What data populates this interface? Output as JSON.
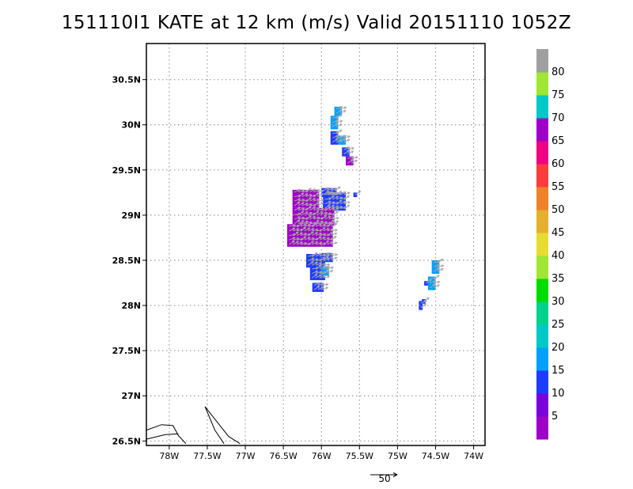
{
  "title": "151110I1 KATE at 12 km (m/s) Valid 20151110 1052Z",
  "map": {
    "lon_ticks": [
      "78W",
      "77.5W",
      "77W",
      "76.5W",
      "76W",
      "75.5W",
      "75W",
      "74.5W",
      "74W"
    ],
    "lat_ticks": [
      "26.5N",
      "27N",
      "27.5N",
      "28N",
      "28.5N",
      "29N",
      "29.5N",
      "30N",
      "30.5N"
    ],
    "lon_range": [
      -78.3,
      -73.85
    ],
    "lat_range": [
      26.45,
      30.9
    ],
    "grid": true,
    "cell_size_deg": 0.05
  },
  "colorbar": {
    "labels": [
      "5",
      "10",
      "15",
      "20",
      "25",
      "30",
      "35",
      "40",
      "45",
      "50",
      "55",
      "60",
      "65",
      "70",
      "75",
      "80"
    ],
    "colors": [
      "#a000c8",
      "#7a00dc",
      "#1e3cff",
      "#00a0ff",
      "#00c8c8",
      "#00d28c",
      "#00dc00",
      "#a0e632",
      "#e6dc32",
      "#e6af2d",
      "#f08228",
      "#fa3c3c",
      "#f00082",
      "#a000c8",
      "#00c8c8",
      "#a0e632",
      "#a0a0a0"
    ]
  },
  "reference_vector": {
    "label": "50"
  },
  "wind_cells": [
    {
      "lon": -75.83,
      "lat": 30.1,
      "w": 2,
      "h": 2,
      "c": "#00a0ff"
    },
    {
      "lon": -75.88,
      "lat": 29.95,
      "w": 2,
      "h": 3,
      "c": "#00a0ff"
    },
    {
      "lon": -75.88,
      "lat": 29.78,
      "w": 2,
      "h": 3,
      "c": "#1e3cff"
    },
    {
      "lon": -75.78,
      "lat": 29.78,
      "w": 2,
      "h": 2,
      "c": "#00a0ff"
    },
    {
      "lon": -75.73,
      "lat": 29.65,
      "w": 2,
      "h": 2,
      "c": "#1e3cff"
    },
    {
      "lon": -75.68,
      "lat": 29.55,
      "w": 2,
      "h": 2,
      "c": "#a000c8"
    },
    {
      "lon": -76.0,
      "lat": 29.2,
      "w": 4,
      "h": 2,
      "c": "#1e3cff"
    },
    {
      "lon": -75.98,
      "lat": 29.05,
      "w": 6,
      "h": 4,
      "c": "#1e3cff"
    },
    {
      "lon": -75.58,
      "lat": 29.2,
      "w": 1,
      "h": 1,
      "c": "#1e3cff"
    },
    {
      "lon": -76.38,
      "lat": 29.08,
      "w": 7,
      "h": 4,
      "c": "#a000c8"
    },
    {
      "lon": -76.38,
      "lat": 28.88,
      "w": 11,
      "h": 4,
      "c": "#a000c8"
    },
    {
      "lon": -76.45,
      "lat": 28.65,
      "w": 12,
      "h": 5,
      "c": "#a000c8"
    },
    {
      "lon": -76.2,
      "lat": 28.42,
      "w": 5,
      "h": 3,
      "c": "#1e3cff"
    },
    {
      "lon": -76.0,
      "lat": 28.48,
      "w": 3,
      "h": 2,
      "c": "#1e3cff"
    },
    {
      "lon": -76.15,
      "lat": 28.28,
      "w": 4,
      "h": 3,
      "c": "#1e3cff"
    },
    {
      "lon": -76.0,
      "lat": 28.33,
      "w": 2,
      "h": 2,
      "c": "#00a0ff"
    },
    {
      "lon": -76.12,
      "lat": 28.15,
      "w": 3,
      "h": 2,
      "c": "#1e3cff"
    },
    {
      "lon": -74.55,
      "lat": 28.35,
      "w": 2,
      "h": 3,
      "c": "#00a0ff"
    },
    {
      "lon": -74.6,
      "lat": 28.17,
      "w": 2,
      "h": 3,
      "c": "#00a0ff"
    },
    {
      "lon": -74.65,
      "lat": 28.22,
      "w": 1,
      "h": 1,
      "c": "#1e3cff"
    },
    {
      "lon": -74.72,
      "lat": 27.95,
      "w": 1,
      "h": 2,
      "c": "#1e3cff"
    },
    {
      "lon": -74.68,
      "lat": 28.02,
      "w": 1,
      "h": 1,
      "c": "#1e3cff"
    }
  ],
  "coastline": [
    [
      [
        -78.3,
        26.62
      ],
      [
        -78.1,
        26.68
      ],
      [
        -77.95,
        26.67
      ],
      [
        -77.88,
        26.56
      ],
      [
        -77.78,
        26.47
      ]
    ],
    [
      [
        -78.3,
        26.52
      ],
      [
        -78.05,
        26.57
      ],
      [
        -77.88,
        26.58
      ]
    ],
    [
      [
        -77.53,
        26.88
      ],
      [
        -77.38,
        26.72
      ],
      [
        -77.22,
        26.55
      ],
      [
        -77.07,
        26.47
      ]
    ],
    [
      [
        -77.53,
        26.88
      ],
      [
        -77.4,
        26.62
      ],
      [
        -77.28,
        26.47
      ]
    ]
  ]
}
